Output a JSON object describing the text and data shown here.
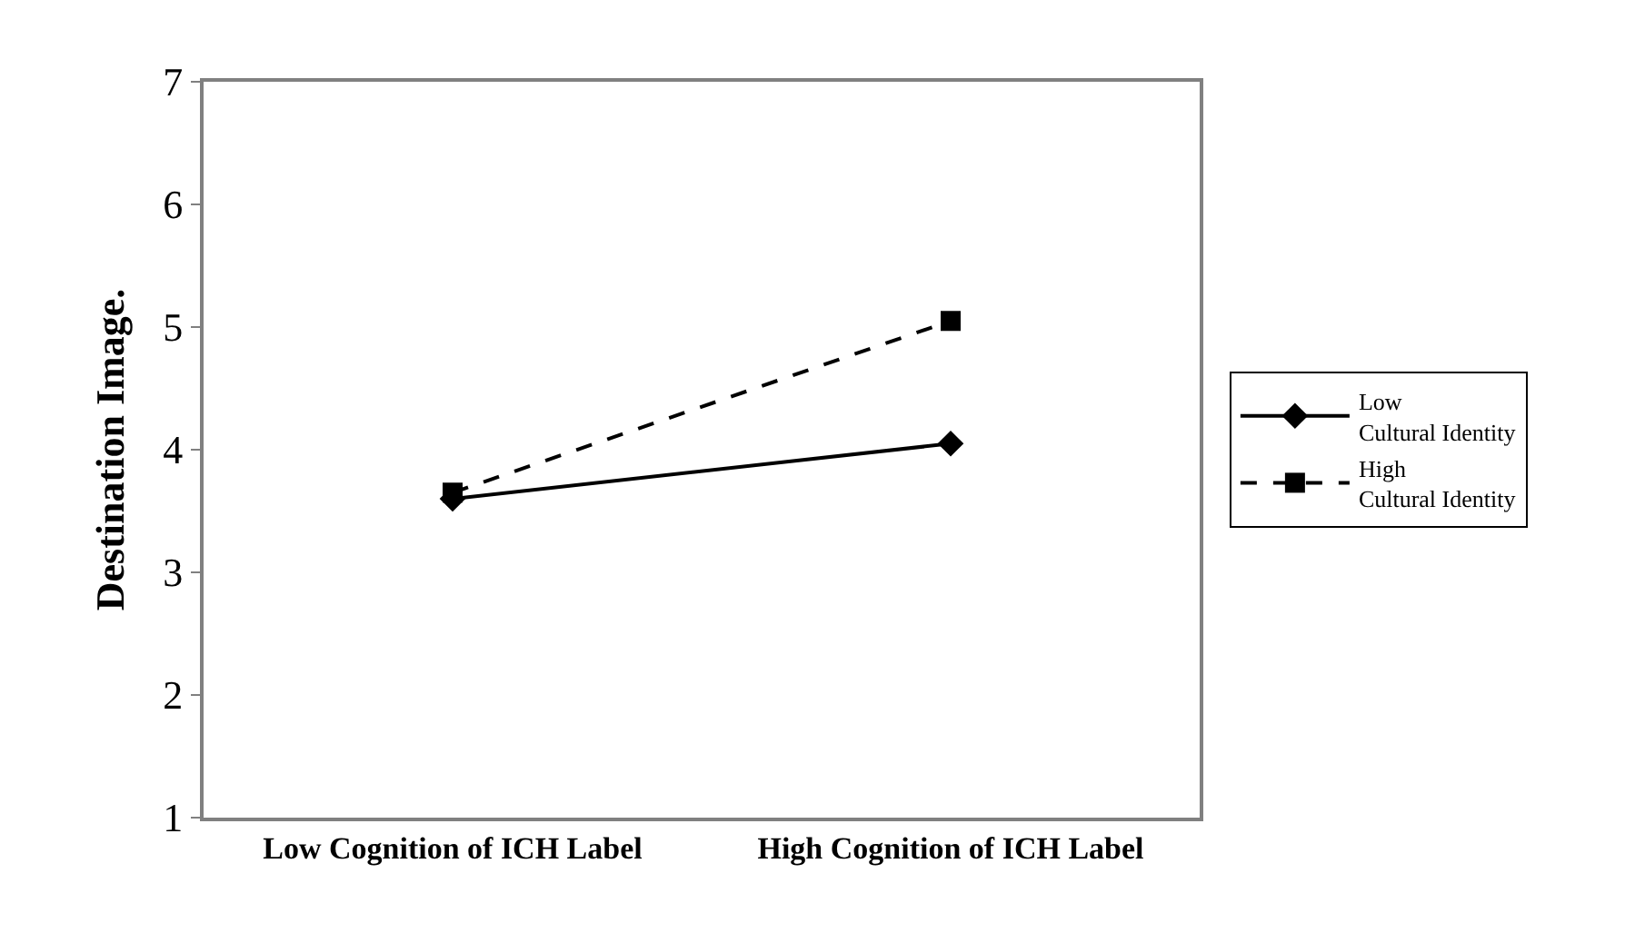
{
  "chart_data": {
    "type": "line",
    "ylabel": "Destination Image.",
    "categories": [
      "Low Cognition of ICH Label",
      "High Cognition of ICH Label"
    ],
    "series": [
      {
        "name": "Low\nCultural Identity",
        "color": "#000000",
        "values": [
          3.6,
          4.05
        ],
        "marker": "diamond",
        "line_style": "solid"
      },
      {
        "name": "High\nCultural Identity",
        "color": "#000000",
        "values": [
          3.65,
          5.05
        ],
        "marker": "square",
        "line_style": "dashed"
      }
    ],
    "ylim": [
      1,
      7
    ],
    "yticks": [
      1,
      2,
      3,
      4,
      5,
      6,
      7
    ],
    "grid": false,
    "legend": "right"
  }
}
